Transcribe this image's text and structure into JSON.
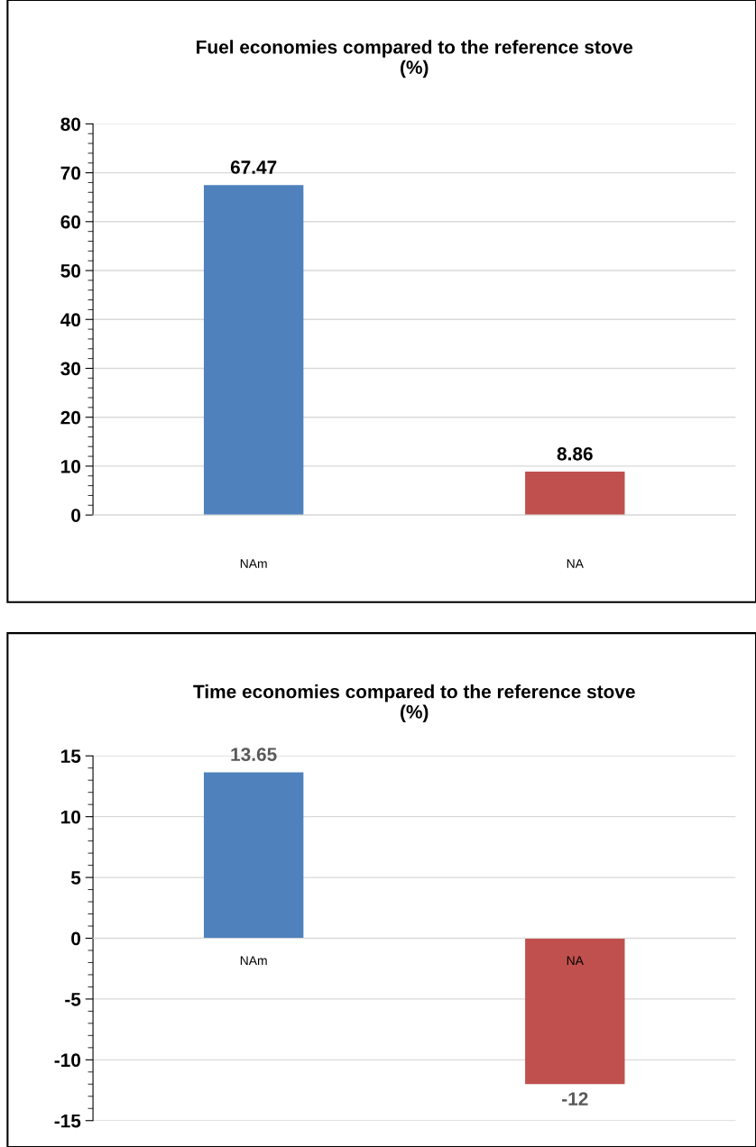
{
  "chart_data": [
    {
      "type": "bar",
      "title": "Fuel economies compared to the reference stove\n(%)",
      "categories": [
        "NAm",
        "NA"
      ],
      "values": [
        67.47,
        8.86
      ],
      "colors": [
        "#4f81bd",
        "#c0504d"
      ],
      "ylim": [
        0,
        80
      ],
      "yticks": [
        0,
        10,
        20,
        30,
        40,
        50,
        60,
        70,
        80
      ],
      "grid": "y",
      "data_labels": true
    },
    {
      "type": "bar",
      "title": "Time economies compared to the reference stove\n(%)",
      "categories": [
        "NAm",
        "NA"
      ],
      "values": [
        13.65,
        -12
      ],
      "colors": [
        "#4f81bd",
        "#c0504d"
      ],
      "ylim": [
        -15,
        15
      ],
      "yticks": [
        -15,
        -10,
        -5,
        0,
        5,
        10,
        15
      ],
      "grid": "y",
      "data_labels": true
    }
  ]
}
